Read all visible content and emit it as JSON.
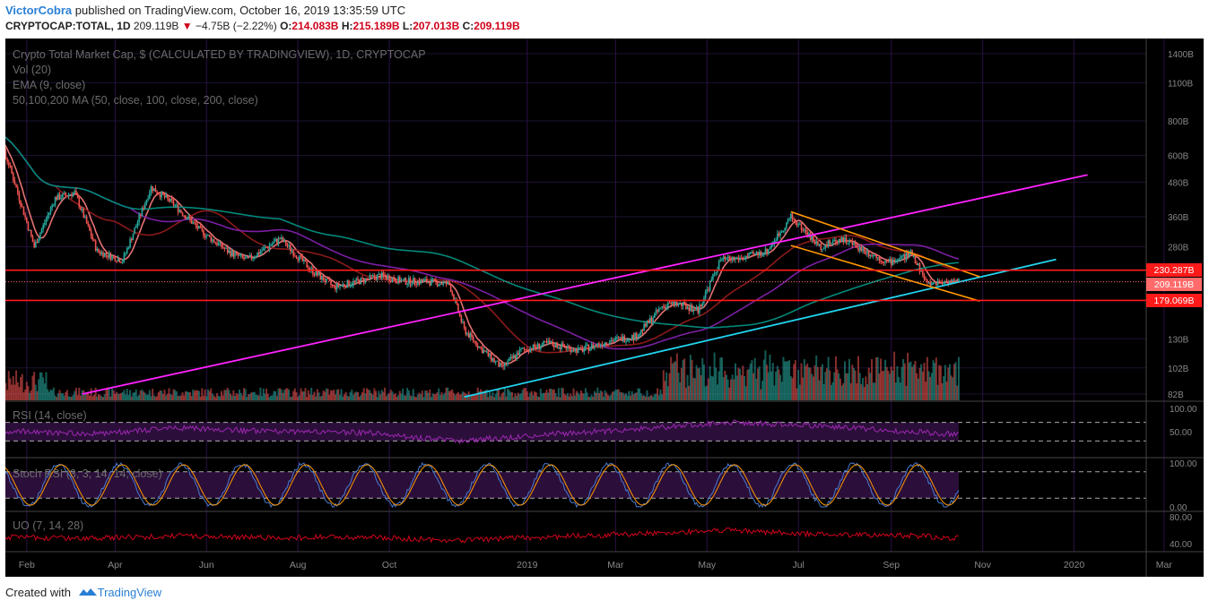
{
  "header": {
    "author": "VictorCobra",
    "published_text": "published on TradingView.com, October 16, 2019 13:35:59 UTC",
    "symbol": "CRYPTOCAP:TOTAL, 1D",
    "last": "209.119B",
    "change": "−4.75B (−2.22%)",
    "o_label": "O:",
    "o_value": "214.083B",
    "h_label": "H:",
    "h_value": "215.189B",
    "l_label": "L:",
    "l_value": "207.013B",
    "c_label": "C:",
    "c_value": "209.119B"
  },
  "legend": {
    "title": "Crypto Total Market Cap, $ (CALCULATED BY TRADINGVIEW), 1D, CRYPTOCAP",
    "vol": "Vol (20)",
    "ema": "EMA (9, close)",
    "ma": "50,100,200 MA (50, close, 100, close, 200, close)",
    "rsi": "RSI (14, close)",
    "stoch": "Stoch RSI (3, 3, 14, 14, close)",
    "uo": "UO (7, 14, 28)"
  },
  "price_labels": {
    "resistance": "230.287B",
    "last": "209.119B",
    "support": "179.069B"
  },
  "footer": {
    "created_with": "Created with",
    "brand": "TradingView"
  },
  "colors": {
    "background": "#000000",
    "candle_up": "#26a69a",
    "candle_down": "#ef5350",
    "trend_magenta": "#ff22ff",
    "trend_cyan": "#22d3ee",
    "wedge_orange": "#ff9800",
    "level_red": "#ff1a1a",
    "ma50": "#8b1a1a",
    "ma100": "#7b1fa2",
    "ma200": "#00897b",
    "rsi": "#9c27b0",
    "stoch_k": "#4a7bd0",
    "stoch_d": "#ff9800",
    "uo": "#d0021b"
  },
  "chart_data": [
    {
      "type": "line",
      "title": "Crypto Total Market Cap, $ (CALCULATED BY TRADINGVIEW), 1D, CRYPTOCAP",
      "y_scale": "log",
      "y_ticks": [
        "1400B",
        "1100B",
        "800B",
        "600B",
        "480B",
        "360B",
        "280B",
        "230.287B",
        "209.119B",
        "179.069B",
        "130B",
        "102B",
        "82B"
      ],
      "y_tick_values": [
        1400,
        1100,
        800,
        600,
        480,
        360,
        280,
        230.287,
        209.119,
        179.069,
        130,
        102,
        82
      ],
      "x_ticks": [
        "Feb",
        "Apr",
        "Jun",
        "Aug",
        "Oct",
        "2019",
        "Mar",
        "May",
        "Jul",
        "Sep",
        "Nov",
        "2020",
        "Mar"
      ],
      "x_tick_dates": [
        "2018-02-01",
        "2018-04-01",
        "2018-06-01",
        "2018-08-01",
        "2018-10-01",
        "2019-01-01",
        "2019-03-01",
        "2019-05-01",
        "2019-07-01",
        "2019-09-01",
        "2019-11-01",
        "2020-01-01",
        "2020-03-01"
      ],
      "series": [
        {
          "x": [
            "2018-01-08",
            "2018-01-20",
            "2018-02-06",
            "2018-02-20",
            "2018-03-05",
            "2018-03-20",
            "2018-04-06",
            "2018-04-25",
            "2018-05-10",
            "2018-05-28",
            "2018-06-15",
            "2018-06-28",
            "2018-07-20",
            "2018-08-10",
            "2018-08-25",
            "2018-09-10",
            "2018-09-25",
            "2018-10-10",
            "2018-10-25",
            "2018-11-10",
            "2018-11-20",
            "2018-12-01",
            "2018-12-15",
            "2018-12-28",
            "2019-01-15",
            "2019-02-05",
            "2019-02-25",
            "2019-03-15",
            "2019-04-01",
            "2019-04-10",
            "2019-04-25",
            "2019-05-10",
            "2019-05-25",
            "2019-06-10",
            "2019-06-26",
            "2019-07-15",
            "2019-07-30",
            "2019-08-15",
            "2019-08-30",
            "2019-09-15",
            "2019-09-25",
            "2019-10-05",
            "2019-10-16"
          ],
          "values": [
            760,
            560,
            280,
            420,
            440,
            270,
            250,
            460,
            400,
            320,
            270,
            250,
            300,
            230,
            200,
            210,
            220,
            210,
            210,
            205,
            140,
            120,
            102,
            118,
            125,
            118,
            128,
            133,
            170,
            175,
            165,
            250,
            255,
            270,
            360,
            280,
            300,
            270,
            245,
            265,
            205,
            210,
            209
          ]
        }
      ],
      "horizontal_levels": [
        230.287,
        179.069
      ]
    },
    {
      "type": "line",
      "title": "RSI (14, close)",
      "y_ticks": [
        "100.00",
        "50.00"
      ],
      "bands": [
        70,
        30
      ],
      "series": [
        {
          "x": [
            "2018-01",
            "2018-03",
            "2018-05",
            "2018-07",
            "2018-09",
            "2018-11",
            "2019-01",
            "2019-03",
            "2019-05",
            "2019-07",
            "2019-09",
            "2019-10"
          ],
          "values": [
            52,
            45,
            58,
            50,
            48,
            30,
            44,
            55,
            70,
            62,
            50,
            44
          ]
        }
      ]
    },
    {
      "type": "line",
      "title": "Stoch RSI (3, 3, 14, 14, close)",
      "y_ticks": [
        "100.00",
        "0.00"
      ],
      "bands": [
        80,
        20
      ]
    },
    {
      "type": "line",
      "title": "UO (7, 14, 28)",
      "y_ticks": [
        "80.00",
        "40.00"
      ],
      "series": [
        {
          "x": [
            "2018-01",
            "2018-03",
            "2018-05",
            "2018-07",
            "2018-09",
            "2018-11",
            "2019-01",
            "2019-03",
            "2019-05",
            "2019-07",
            "2019-09",
            "2019-10"
          ],
          "values": [
            50,
            48,
            52,
            49,
            50,
            45,
            50,
            55,
            60,
            54,
            52,
            48
          ]
        }
      ]
    }
  ]
}
